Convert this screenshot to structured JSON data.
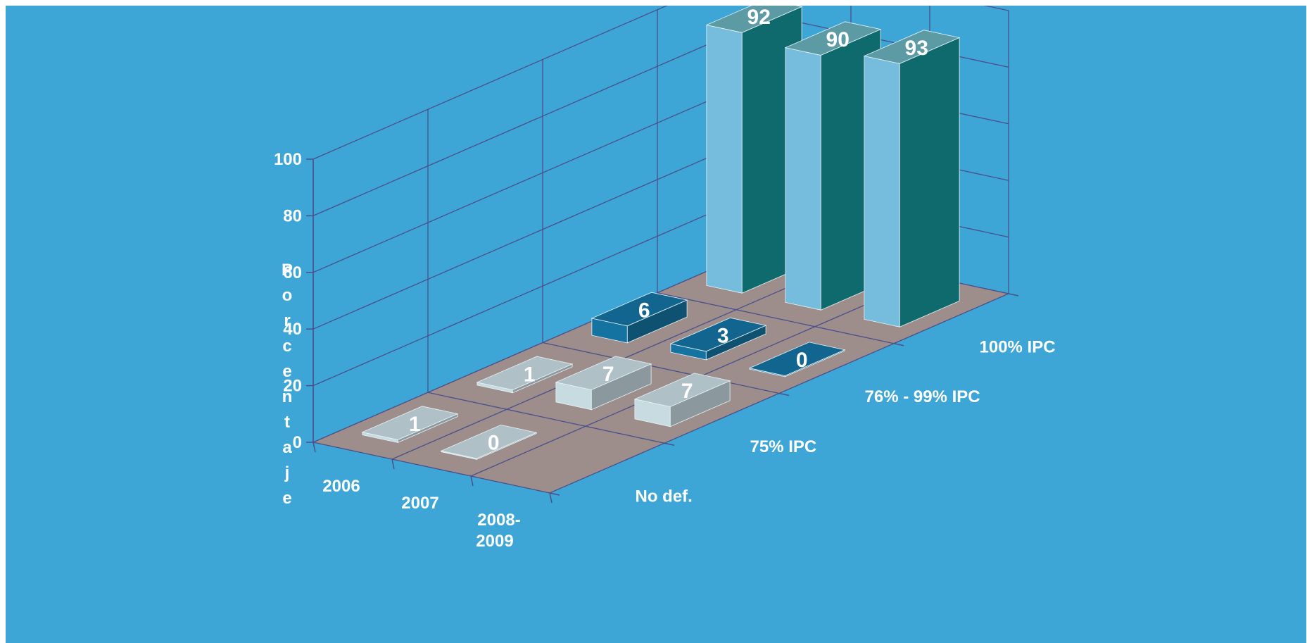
{
  "chart_data": {
    "type": "bar",
    "subtype": "3d-bar",
    "title": "",
    "ylabel": "Porcentaje",
    "ylim": [
      0,
      100
    ],
    "yticks": [
      "0",
      "20",
      "40",
      "60",
      "80",
      "100"
    ],
    "categories": [
      "2006",
      "2007",
      "2008-\n2009"
    ],
    "series": [
      {
        "name": "No def.",
        "values": [
          1,
          0,
          null
        ],
        "color": "#c7dbe1"
      },
      {
        "name": "75% IPC",
        "values": [
          1,
          7,
          7
        ],
        "color": "#c7dbe1"
      },
      {
        "name": "76% - 99% IPC",
        "values": [
          6,
          3,
          0
        ],
        "color": "#1573a1"
      },
      {
        "name": "100% IPC",
        "values": [
          92,
          90,
          93
        ],
        "color": "#76bcdc"
      }
    ],
    "data_labels": true,
    "floor_color": "#9d8e8c",
    "background_color": "#3da6d6"
  }
}
